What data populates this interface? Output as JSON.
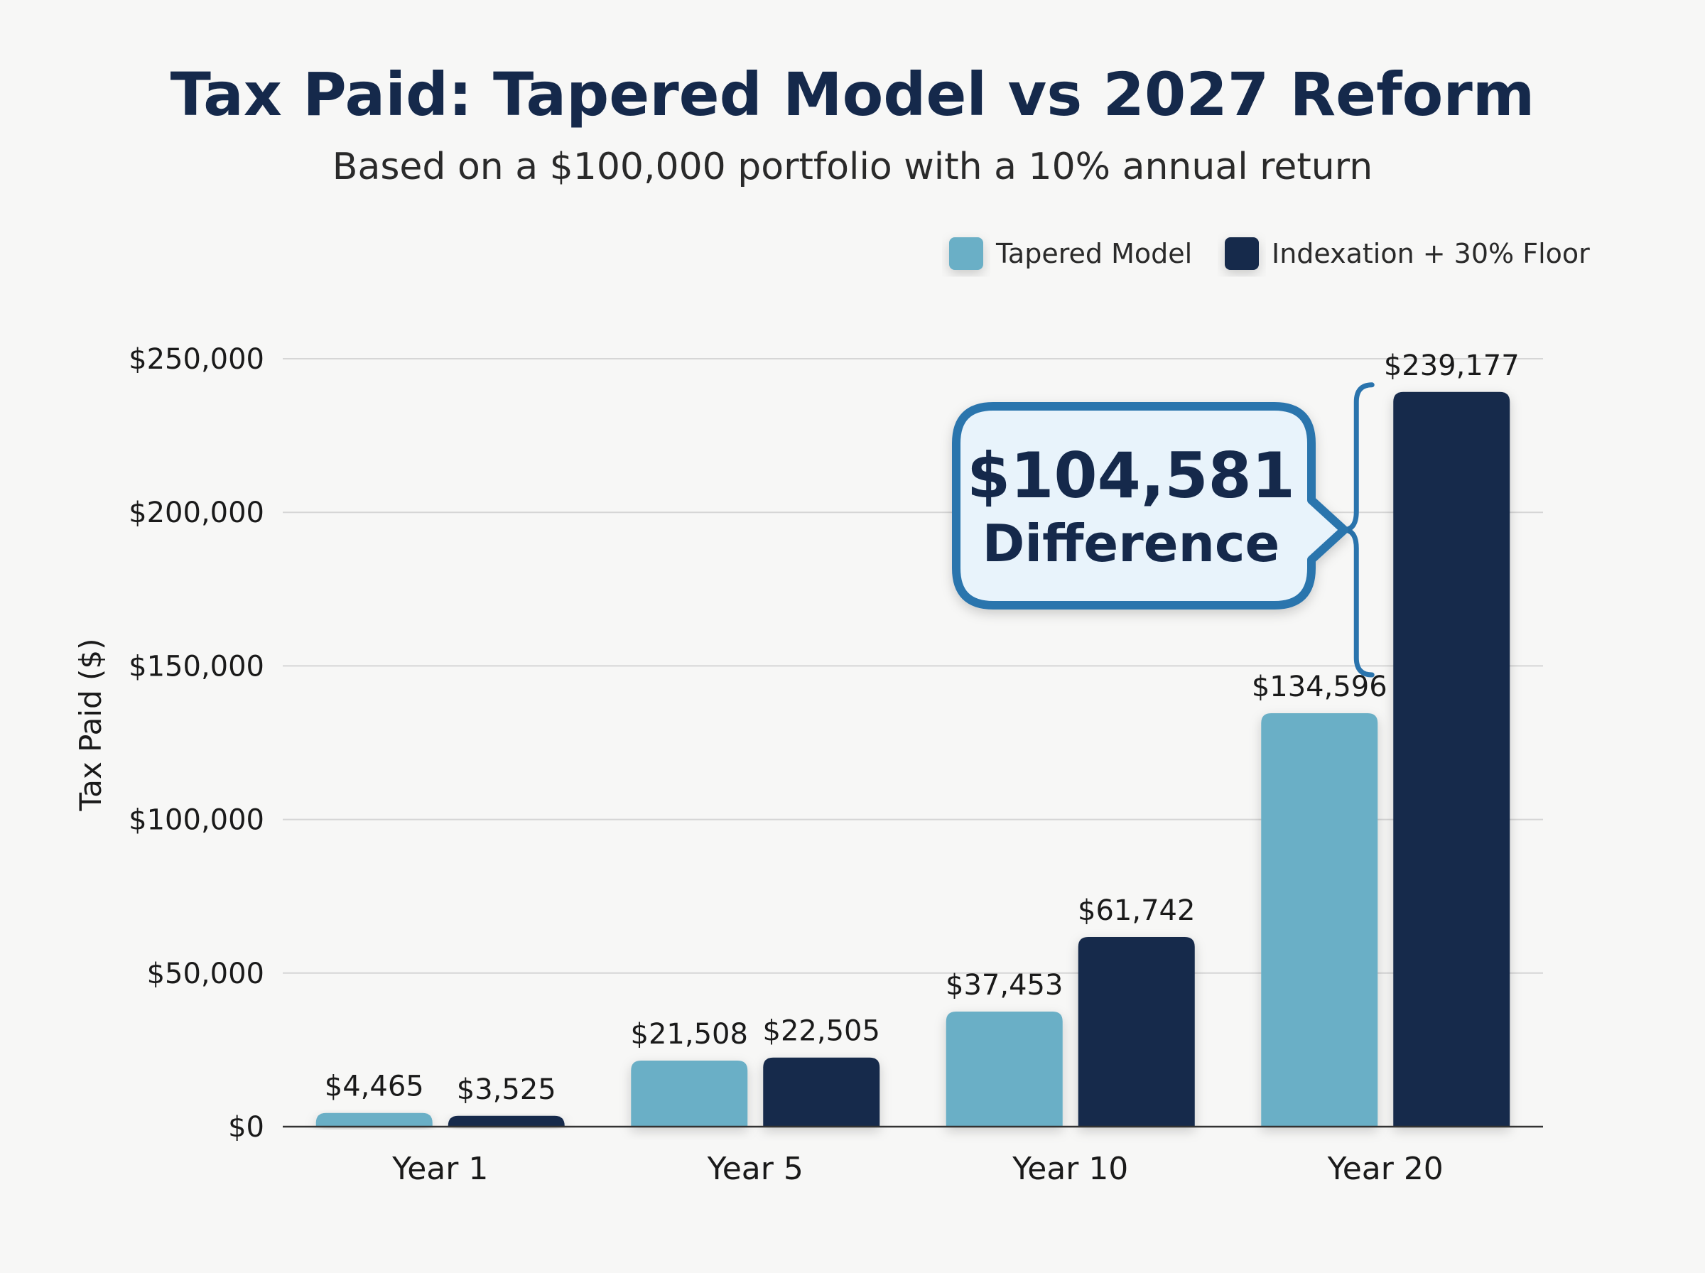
{
  "chart_data": {
    "type": "bar",
    "title": "Tax Paid: Tapered Model vs 2027 Reform",
    "subtitle": "Based on a $100,000 portfolio with a 10% annual return",
    "ylabel": "Tax Paid ($)",
    "xlabel": "",
    "ylim": [
      0,
      250000
    ],
    "yticks": [
      0,
      50000,
      100000,
      150000,
      200000,
      250000
    ],
    "ytick_labels": [
      "$0",
      "$50,000",
      "$100,000",
      "$150,000",
      "$200,000",
      "$250,000"
    ],
    "categories": [
      "Year 1",
      "Year 5",
      "Year 10",
      "Year 20"
    ],
    "legend_position": "top-right",
    "grid": true,
    "series": [
      {
        "name": "Tapered Model",
        "color": "#6aafc6",
        "values": [
          4465,
          21508,
          37453,
          134596
        ],
        "labels": [
          "$4,465",
          "$21,508",
          "$37,453",
          "$134,596"
        ]
      },
      {
        "name": "Indexation + 30% Floor",
        "color": "#15294b",
        "values": [
          3525,
          22505,
          61742,
          239177
        ],
        "labels": [
          "$3,525",
          "$22,505",
          "$61,742",
          "$239,177"
        ]
      }
    ],
    "annotation": {
      "amount": "$104,581",
      "word": "Difference",
      "category": "Year 20"
    }
  }
}
